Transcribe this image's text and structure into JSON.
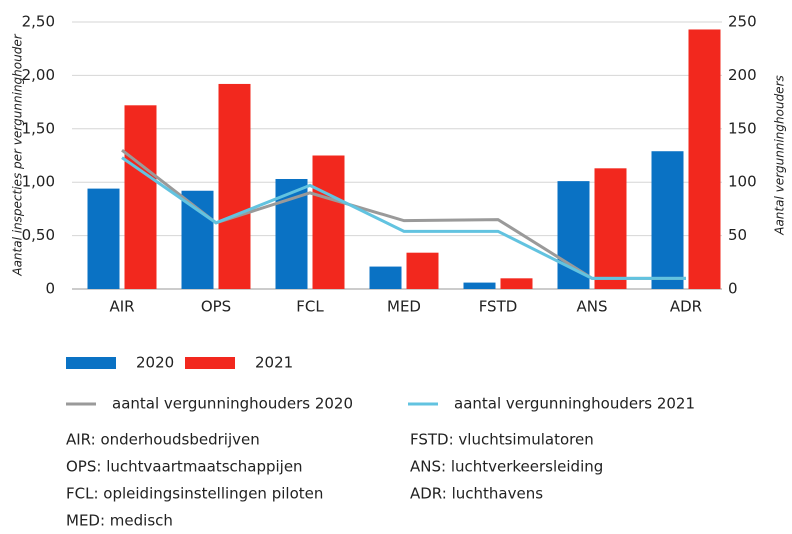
{
  "chart_data": {
    "type": "bar",
    "y_label": "Aantal inspecties per vergunninghouder",
    "y2_label": "Aantal vergunninghouders",
    "categories": [
      "AIR",
      "OPS",
      "FCL",
      "MED",
      "FSTD",
      "ANS",
      "ADR"
    ],
    "series": [
      {
        "name": "2020",
        "type": "bar",
        "color": "#0a72c4",
        "values": [
          0.94,
          0.92,
          1.03,
          0.21,
          0.06,
          1.01,
          1.29
        ]
      },
      {
        "name": "2021",
        "type": "bar",
        "color": "#f2281e",
        "values": [
          1.72,
          1.92,
          1.25,
          0.34,
          0.1,
          1.13,
          2.43
        ]
      },
      {
        "name": "aantal vergunninghouders 2020",
        "type": "line",
        "axis": "y2",
        "color": "#9a9a9a",
        "values": [
          130,
          62,
          90,
          64,
          65,
          10,
          10
        ]
      },
      {
        "name": "aantal vergunninghouders 2021",
        "type": "line",
        "axis": "y2",
        "color": "#62c3e0",
        "values": [
          123,
          62,
          97,
          54,
          54,
          10,
          10
        ]
      }
    ],
    "ylim": [
      0,
      2.5
    ],
    "yticks": [
      0,
      {
        "value": 0.5,
        "label": "0,50"
      },
      {
        "value": 1,
        "label": "1,00"
      },
      {
        "value": 1.5,
        "label": "1,50"
      },
      {
        "value": 2,
        "label": "2,00"
      },
      {
        "value": 2.5,
        "label": "2,50"
      }
    ],
    "y2lim": [
      0,
      250
    ],
    "y2ticks": [
      0,
      50,
      100,
      150,
      200,
      250
    ],
    "grid": true,
    "notes": [
      "AIR: onderhoudsbedrijven",
      "OPS: luchtvaartmaatschappijen",
      "FCL: opleidingsinstellingen piloten",
      "MED: medisch",
      "FSTD: vluchtsimulatoren",
      "ANS: luchtverkeersleiding",
      "ADR: luchthavens"
    ]
  }
}
